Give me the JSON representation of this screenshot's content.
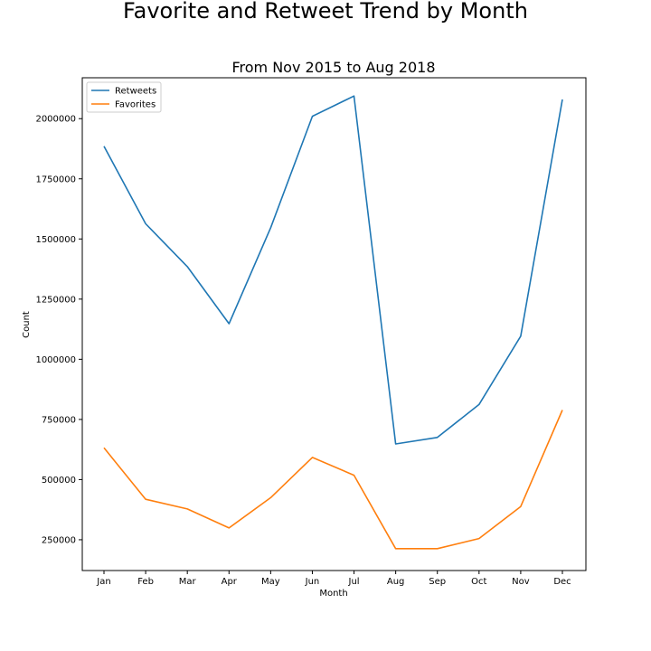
{
  "figure": {
    "suptitle": "Favorite and Retweet Trend by Month"
  },
  "chart_data": {
    "type": "line",
    "title": "From Nov 2015 to Aug 2018",
    "xlabel": "Month",
    "ylabel": "Count",
    "categories": [
      "Jan",
      "Feb",
      "Mar",
      "Apr",
      "May",
      "Jun",
      "Jul",
      "Aug",
      "Sep",
      "Oct",
      "Nov",
      "Dec"
    ],
    "series": [
      {
        "name": "Retweets",
        "color": "#1f77b4",
        "values": [
          1885000,
          1563000,
          1385000,
          1148000,
          1547000,
          2010000,
          2094000,
          648000,
          675000,
          812000,
          1096000,
          2080000
        ]
      },
      {
        "name": "Favorites",
        "color": "#ff7f0e",
        "values": [
          632000,
          418000,
          378000,
          299000,
          425000,
          592000,
          518000,
          213000,
          213000,
          255000,
          388000,
          789000
        ]
      }
    ],
    "yticks": [
      250000,
      500000,
      750000,
      1000000,
      1250000,
      1500000,
      1750000,
      2000000
    ],
    "ylim": [
      122000,
      2170000
    ],
    "grid": false,
    "legend_position": "upper-left"
  }
}
